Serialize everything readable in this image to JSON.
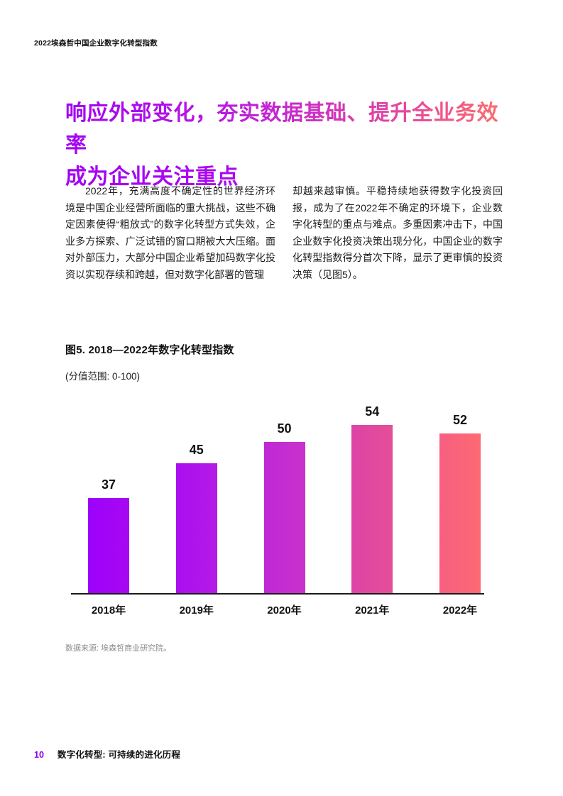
{
  "header": {
    "running_title": "2022埃森哲中国企业数字化转型指数"
  },
  "heading": {
    "line1": "响应外部变化，夯实数据基础、提升全业务效率",
    "line2": "成为企业关注重点",
    "gradient_colors": [
      "#a201f4",
      "#c02bd4",
      "#ed4f92",
      "#fb7268"
    ]
  },
  "body": {
    "column_left": "2022年，充满高度不确定性的世界经济环境是中国企业经营所面临的重大挑战，这些不确定因素使得“粗放式”的数字化转型方式失效，企业多方探索、广泛试错的窗口期被大大压缩。面对外部压力，大部分中国企业希望加码数字化投资以实现存续和跨越，但对数字化部署的管理",
    "column_right": "却越来越审慎。平稳持续地获得数字化投资回报，成为了在2022年不确定的环境下，企业数字化转型的重点与难点。多重因素冲击下，中国企业数字化投资决策出现分化，中国企业的数字化转型指数得分首次下降，显示了更审慎的投资决策（见图5）。"
  },
  "figure": {
    "source": "数据来源: 埃森哲商业研究院。"
  },
  "chart_data": {
    "type": "bar",
    "title": "图5. 2018—2022年数字化转型指数",
    "subtitle": "(分值范围: 0-100)",
    "categories": [
      "2018年",
      "2019年",
      "2020年",
      "2021年",
      "2022年"
    ],
    "values": [
      37,
      45,
      50,
      54,
      52
    ],
    "ylim": [
      0,
      100
    ],
    "grid": false,
    "legend": "none",
    "value_labels": true,
    "bar_colors": [
      [
        "#9c02fa",
        "#a808f2"
      ],
      [
        "#a90ef0",
        "#b51ae6"
      ],
      [
        "#bf28d6",
        "#ca32cb"
      ],
      [
        "#dd43a7",
        "#e54e97"
      ],
      [
        "#f75f81",
        "#fc6a72"
      ]
    ],
    "axis_color": "#1a1a1a"
  },
  "footer": {
    "page_number": "10",
    "title": "数字化转型: 可持续的进化历程",
    "page_number_color": "#8b00eb"
  }
}
